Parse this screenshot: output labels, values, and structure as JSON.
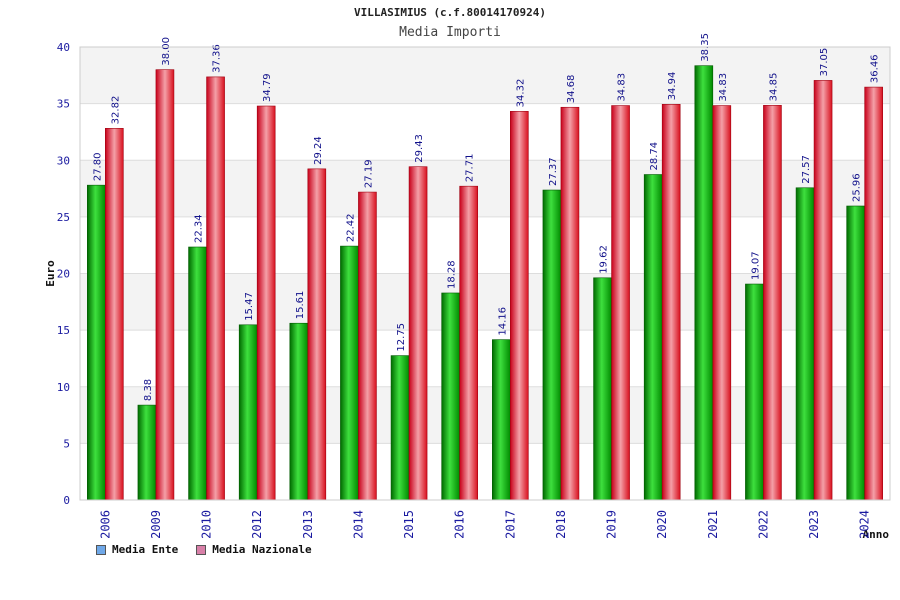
{
  "chart_data": {
    "type": "bar",
    "title": "VILLASIMIUS (c.f.80014170924)",
    "subtitle": "Media Importi",
    "ylabel": "Euro",
    "xlabel": "Anno",
    "ylim": [
      0,
      40
    ],
    "yticks": [
      0,
      5,
      10,
      15,
      20,
      25,
      30,
      35,
      40
    ],
    "grid": true,
    "legend_position": "bottom-left",
    "categories": [
      "2006",
      "2009",
      "2010",
      "2012",
      "2013",
      "2014",
      "2015",
      "2016",
      "2017",
      "2018",
      "2019",
      "2020",
      "2021",
      "2022",
      "2023",
      "2024"
    ],
    "series": [
      {
        "name": "Media Ente",
        "color": "#00b000",
        "legend_color": "#6fa8e8",
        "values": [
          27.8,
          8.38,
          22.34,
          15.47,
          15.61,
          22.42,
          12.75,
          18.28,
          14.16,
          27.37,
          19.62,
          28.74,
          38.35,
          19.07,
          27.57,
          25.96
        ],
        "labels": [
          "27.80",
          "8.38",
          "22.34",
          "15.47",
          "15.61",
          "22.42",
          "12.75",
          "18.28",
          "14.16",
          "27.37",
          "19.62",
          "28.74",
          "38.35",
          "19.07",
          "27.57",
          "25.96"
        ]
      },
      {
        "name": "Media Nazionale",
        "color": "#e8101c",
        "legend_color": "#d880a8",
        "values": [
          32.82,
          38.0,
          37.36,
          34.79,
          29.24,
          27.19,
          29.43,
          27.71,
          34.32,
          34.68,
          34.83,
          34.94,
          34.83,
          34.85,
          37.05,
          36.46
        ],
        "labels": [
          "32.82",
          "38.00",
          "37.36",
          "34.79",
          "29.24",
          "27.19",
          "29.43",
          "27.71",
          "34.32",
          "34.68",
          "34.83",
          "34.94",
          "34.83",
          "34.85",
          "37.05",
          "36.46"
        ]
      }
    ]
  }
}
